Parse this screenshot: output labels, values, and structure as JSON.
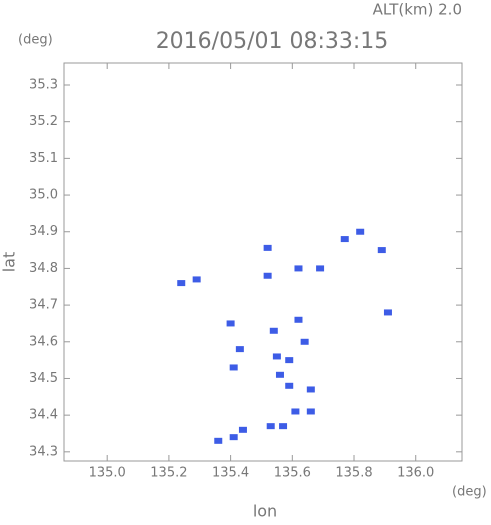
{
  "chart_data": {
    "type": "scatter",
    "title": "2016/05/01 08:33:15",
    "annotation": "ALT(km) 2.0",
    "xlabel": "lon",
    "ylabel": "lat",
    "x_unit": "(deg)",
    "y_unit": "(deg)",
    "xlim": [
      134.86,
      136.15
    ],
    "ylim": [
      34.275,
      35.36
    ],
    "xticks": [
      {
        "value": 135.0,
        "label": "135.0"
      },
      135.2,
      135.4,
      135.6,
      135.8,
      {
        "value": 136.0,
        "label": "136.0"
      }
    ],
    "yticks": [
      34.3,
      34.4,
      34.5,
      34.6,
      34.7,
      34.8,
      34.9,
      {
        "value": 35.0,
        "label": "35.0"
      },
      35.1,
      35.2,
      35.3
    ],
    "series": [
      {
        "color": "#3d5ce6",
        "x": [
          135.24,
          135.29,
          135.52,
          135.52,
          135.77,
          135.82,
          135.89,
          135.91,
          135.4,
          135.43,
          135.41,
          135.54,
          135.55,
          135.56,
          135.59,
          135.62,
          135.64,
          135.59,
          135.66,
          135.61,
          135.66,
          135.57,
          135.53,
          135.44,
          135.41,
          135.36,
          135.69,
          135.62
        ],
        "values": [
          34.76,
          34.77,
          34.78,
          34.856,
          34.88,
          34.9,
          34.85,
          34.68,
          34.65,
          34.58,
          34.53,
          34.63,
          34.56,
          34.51,
          34.55,
          34.66,
          34.6,
          34.48,
          34.47,
          34.41,
          34.41,
          34.37,
          34.37,
          34.36,
          34.34,
          34.33,
          34.8,
          34.8
        ]
      }
    ]
  }
}
